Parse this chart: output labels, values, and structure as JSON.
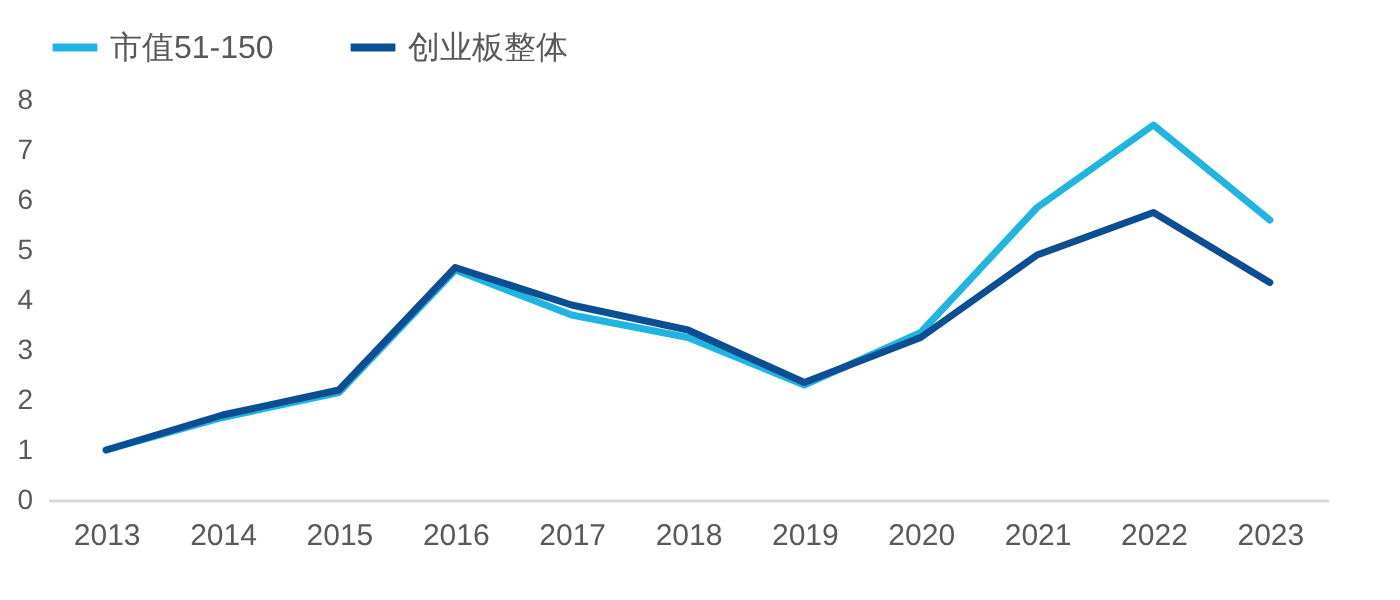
{
  "chart_data": {
    "type": "line",
    "categories": [
      "2013",
      "2014",
      "2015",
      "2016",
      "2017",
      "2018",
      "2019",
      "2020",
      "2021",
      "2022",
      "2023"
    ],
    "series": [
      {
        "name": "市值51-150",
        "color": "#1fb5e0",
        "values": [
          1.0,
          1.65,
          2.15,
          4.6,
          3.7,
          3.25,
          2.3,
          3.35,
          5.85,
          7.5,
          5.6
        ]
      },
      {
        "name": "创业板整体",
        "color": "#0b4e92",
        "values": [
          1.0,
          1.7,
          2.2,
          4.65,
          3.9,
          3.4,
          2.35,
          3.25,
          4.9,
          5.75,
          4.35
        ]
      }
    ],
    "ylim": [
      0,
      8
    ],
    "yticks": [
      0,
      1,
      2,
      3,
      4,
      5,
      6,
      7,
      8
    ],
    "grid": false,
    "legend": "top",
    "line_style": "solid"
  }
}
